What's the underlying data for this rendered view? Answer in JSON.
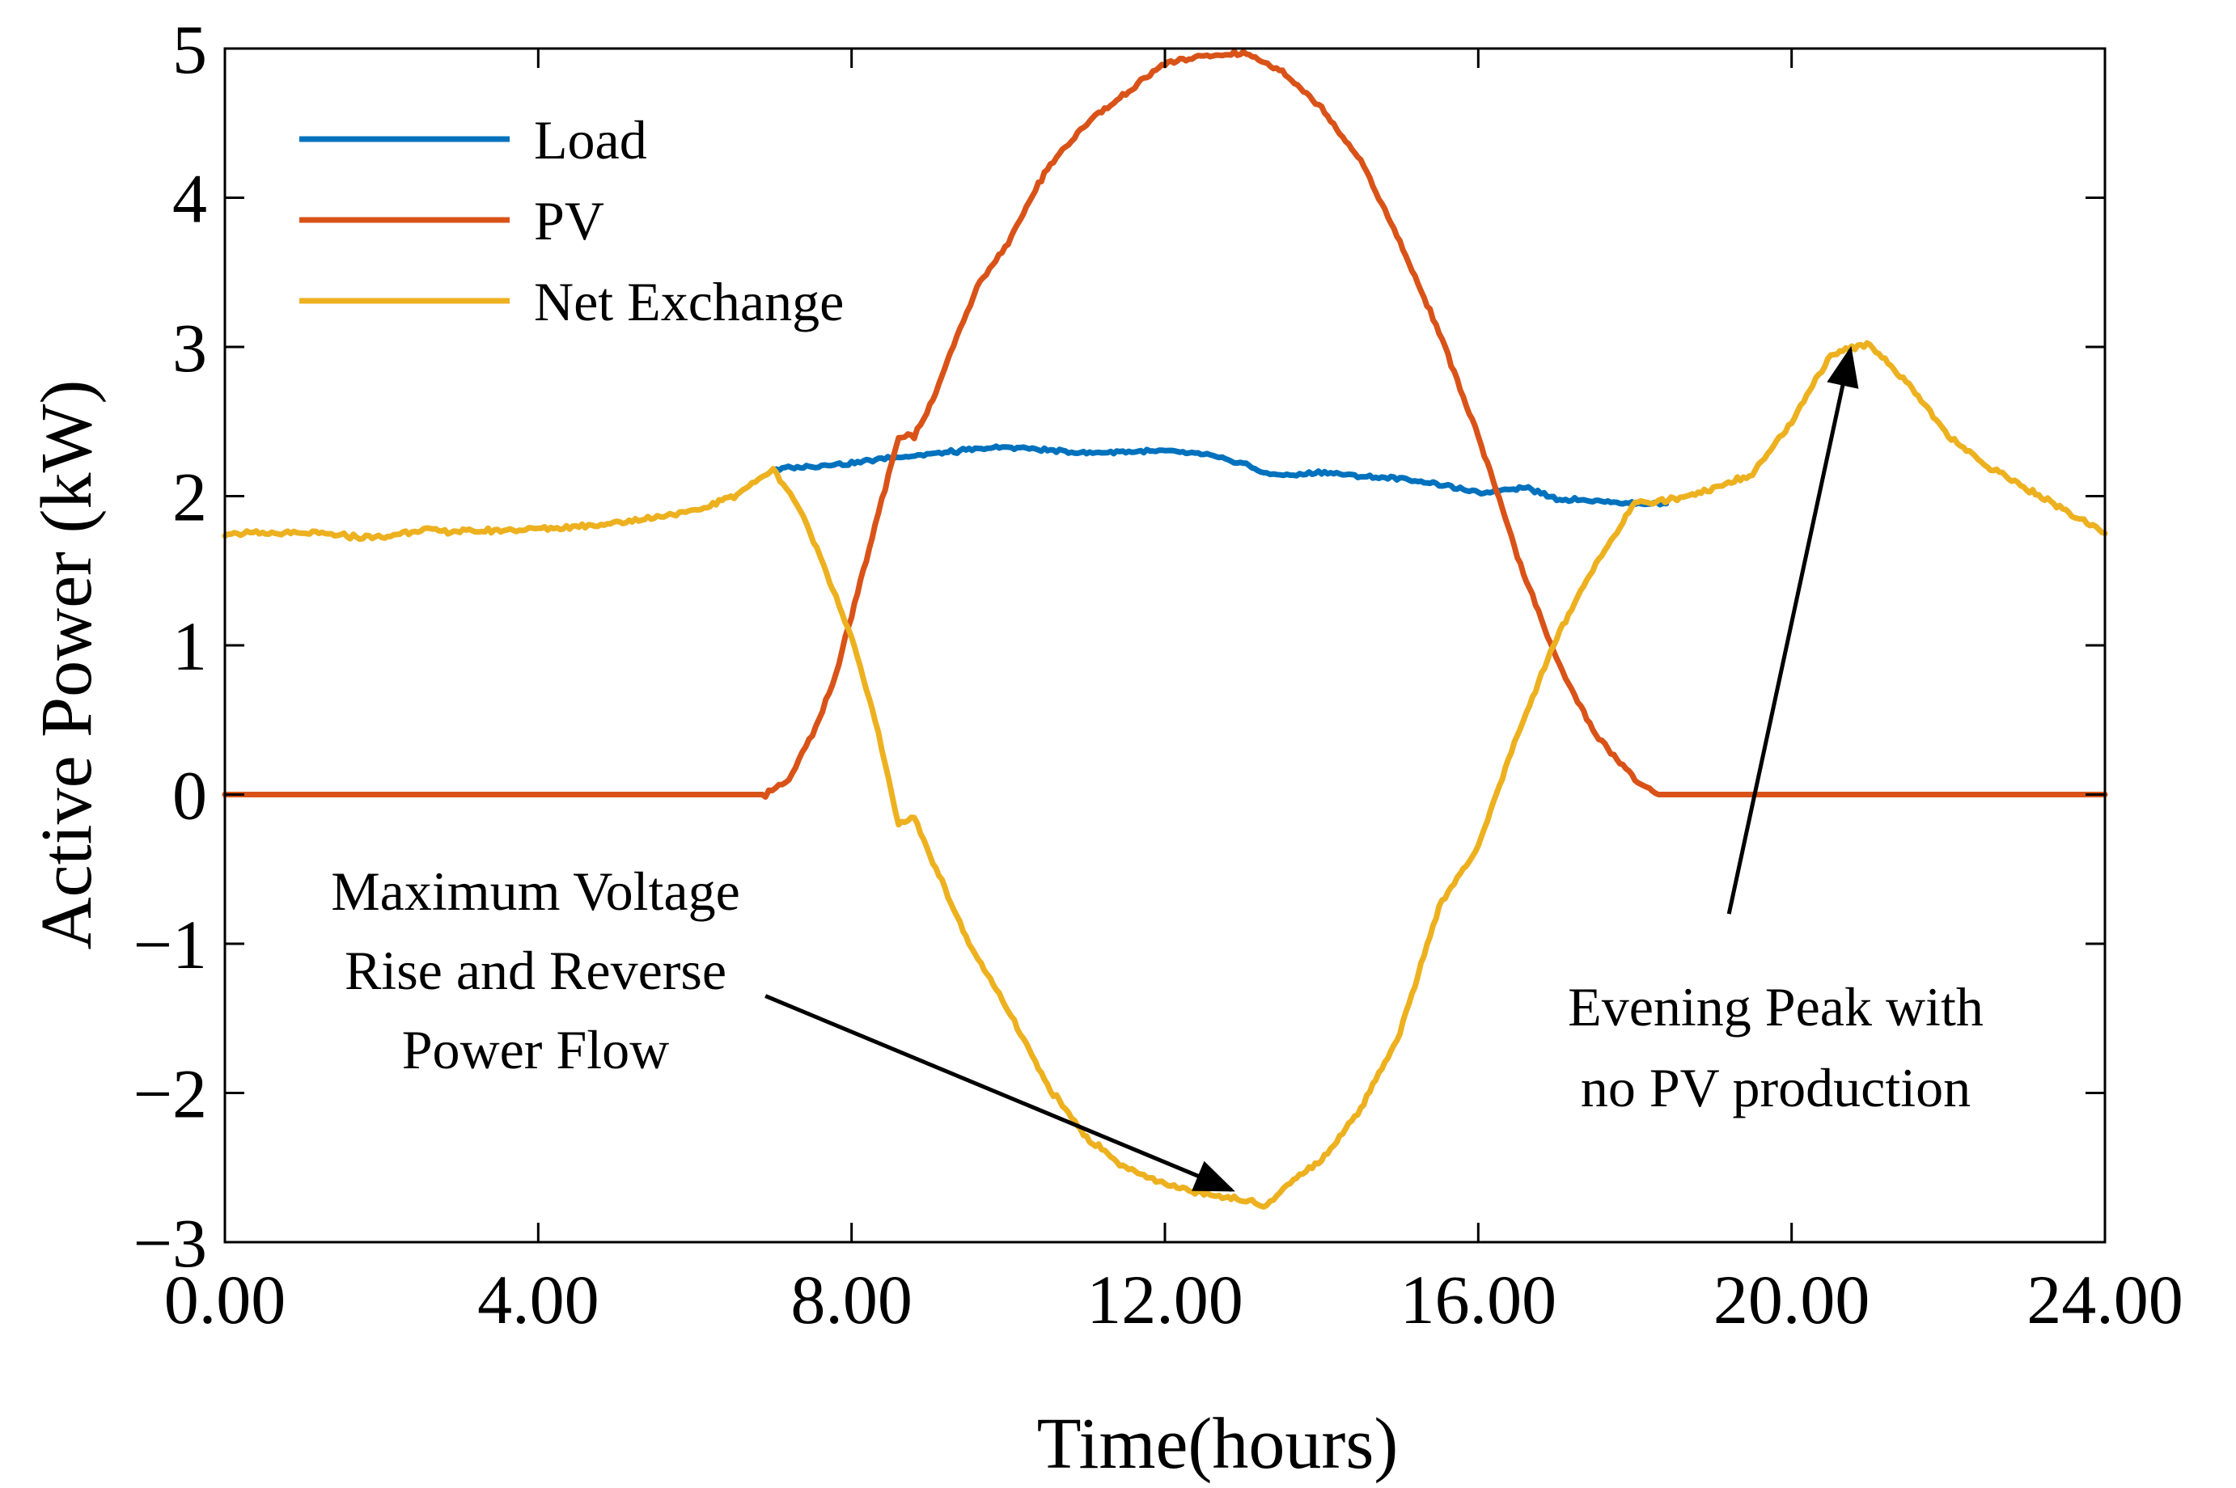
{
  "chart_data": {
    "type": "line",
    "title": "",
    "xlabel": "Time(hours)",
    "ylabel": "Active Power (kW)",
    "xlim": [
      0,
      24
    ],
    "ylim": [
      -3,
      5
    ],
    "xticks": [
      0,
      4,
      8,
      12,
      16,
      20,
      24
    ],
    "xtick_labels": [
      "0.00",
      "4.00",
      "8.00",
      "12.00",
      "16.00",
      "20.00",
      "24.00"
    ],
    "yticks": [
      -3,
      -2,
      -1,
      0,
      1,
      2,
      3,
      4,
      5
    ],
    "ytick_labels": [
      "−3",
      "−2",
      "−1",
      "0",
      "1",
      "2",
      "3",
      "4",
      "5"
    ],
    "grid": false,
    "legend_position": "top-left",
    "series": [
      {
        "name": "Load",
        "color": "#0072BD",
        "x": [
          7.0,
          7.5,
          8.0,
          8.5,
          9.0,
          9.5,
          10.0,
          10.5,
          11.0,
          11.5,
          12.0,
          12.5,
          13.0,
          13.3,
          13.6,
          14.0,
          14.5,
          15.0,
          15.5,
          16.0,
          16.3,
          16.6,
          17.0,
          17.5,
          18.0,
          18.4
        ],
        "y": [
          2.18,
          2.2,
          2.22,
          2.26,
          2.28,
          2.31,
          2.33,
          2.31,
          2.29,
          2.3,
          2.3,
          2.28,
          2.22,
          2.15,
          2.14,
          2.16,
          2.13,
          2.12,
          2.08,
          2.02,
          2.04,
          2.06,
          1.98,
          1.97,
          1.95,
          1.95
        ]
      },
      {
        "name": "PV",
        "color": "#D95319",
        "x": [
          0,
          6.9,
          7.2,
          7.5,
          7.8,
          8.0,
          8.3,
          8.6,
          8.8,
          9.0,
          9.3,
          9.6,
          10.0,
          10.5,
          11.0,
          11.5,
          12.0,
          12.5,
          13.0,
          13.5,
          14.0,
          14.5,
          15.0,
          15.5,
          16.0,
          16.5,
          17.0,
          17.5,
          18.0,
          18.3,
          18.5,
          24.0
        ],
        "y": [
          0,
          0,
          0.1,
          0.4,
          0.8,
          1.2,
          1.8,
          2.4,
          2.4,
          2.6,
          3.0,
          3.4,
          3.7,
          4.2,
          4.5,
          4.7,
          4.9,
          4.95,
          4.97,
          4.85,
          4.6,
          4.25,
          3.7,
          3.1,
          2.4,
          1.6,
          0.9,
          0.4,
          0.1,
          0.0,
          0.0,
          0.0
        ]
      },
      {
        "name": "Net Exchange",
        "color": "#EDB120",
        "x": [
          0,
          1.0,
          2.0,
          2.5,
          3.0,
          4.0,
          5.0,
          6.0,
          6.5,
          7.0,
          7.3,
          7.6,
          8.0,
          8.3,
          8.6,
          8.8,
          9.0,
          9.5,
          10.0,
          10.5,
          11.0,
          11.5,
          12.0,
          12.5,
          13.0,
          13.3,
          13.6,
          14.0,
          14.5,
          15.0,
          15.5,
          16.0,
          16.5,
          17.0,
          17.5,
          18.0,
          18.5,
          19.0,
          19.5,
          20.0,
          20.5,
          21.0,
          21.5,
          22.0,
          22.5,
          23.0,
          23.5,
          24.0
        ],
        "y": [
          1.75,
          1.75,
          1.72,
          1.78,
          1.76,
          1.78,
          1.82,
          1.9,
          2.0,
          2.18,
          1.95,
          1.6,
          1.05,
          0.5,
          -0.2,
          -0.15,
          -0.4,
          -1.0,
          -1.45,
          -1.95,
          -2.3,
          -2.5,
          -2.62,
          -2.67,
          -2.72,
          -2.75,
          -2.6,
          -2.45,
          -2.1,
          -1.6,
          -0.75,
          -0.35,
          0.4,
          1.05,
          1.55,
          1.95,
          1.98,
          2.05,
          2.15,
          2.5,
          2.95,
          3.02,
          2.75,
          2.4,
          2.2,
          2.05,
          1.9,
          1.75
        ]
      }
    ],
    "annotations": [
      {
        "lines": [
          "Maximum Voltage",
          "Rise and Reverse",
          "Power Flow"
        ],
        "arrow_from": [
          6.9,
          -1.35
        ],
        "arrow_to": [
          12.85,
          -2.65
        ]
      },
      {
        "lines": [
          "Evening Peak with",
          "no PV production"
        ],
        "arrow_from": [
          19.2,
          -0.8
        ],
        "arrow_to": [
          20.75,
          2.98
        ]
      }
    ]
  }
}
